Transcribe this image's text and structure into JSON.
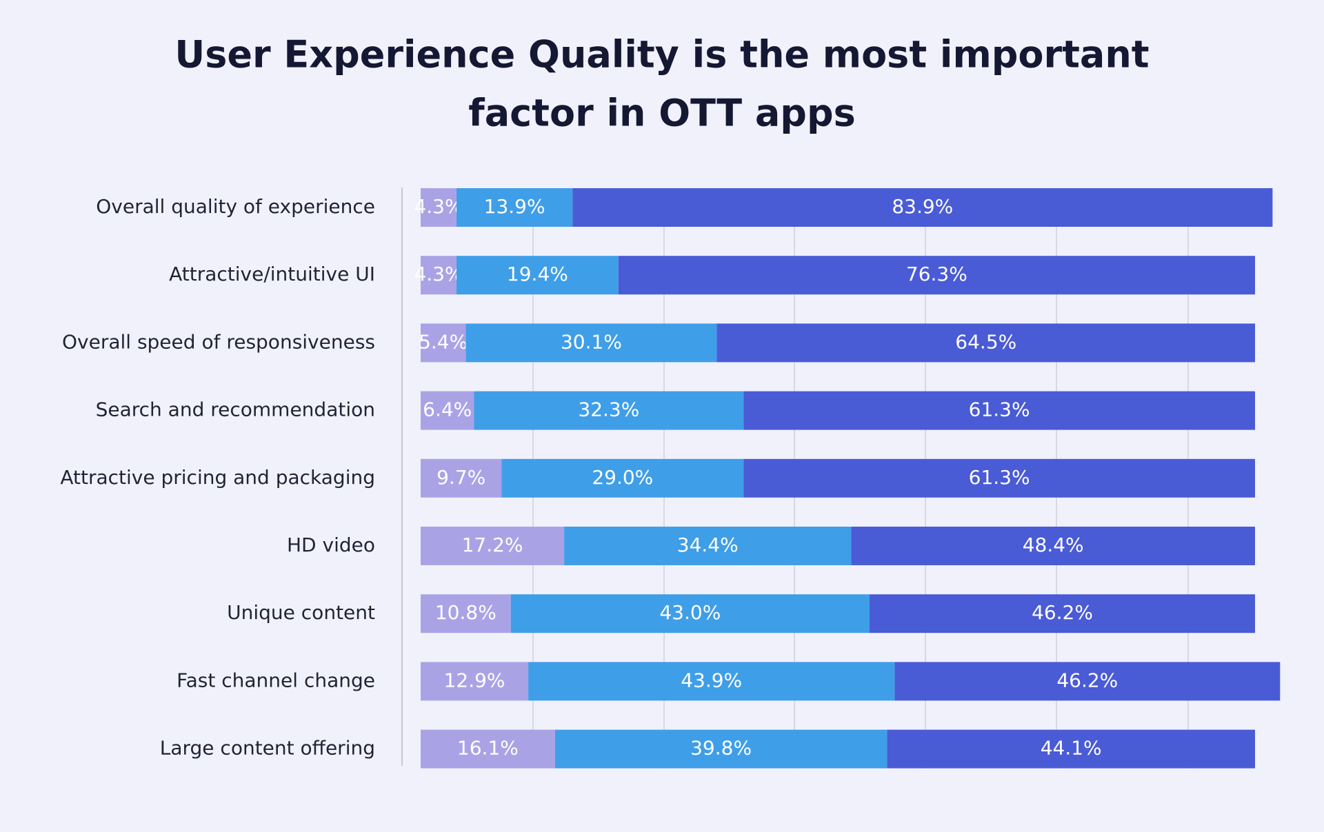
{
  "chart_data": {
    "type": "stacked-bar-horizontal",
    "title": [
      "User Experience Quality is the most important",
      "factor in OTT apps"
    ],
    "categories": [
      "Overall quality of experience",
      "Attractive/intuitive UI",
      "Overall speed of responsiveness",
      "Search and recommendation",
      "Attractive pricing and packaging",
      "HD video",
      "Unique content",
      "Fast channel change",
      "Large content offering"
    ],
    "xlim": [
      0,
      100
    ],
    "series": [
      {
        "color": "#a9a3e6",
        "values": [
          4.3,
          4.3,
          5.4,
          6.4,
          9.7,
          17.2,
          10.8,
          12.9,
          16.1
        ],
        "value_labels": [
          "4.3%",
          "4.3%",
          "5.4%",
          "6.4%",
          "9.7%",
          "17.2%",
          "10.8%",
          "12.9%",
          "16.1%"
        ]
      },
      {
        "color": "#3f9ee8",
        "values": [
          13.9,
          19.4,
          30.1,
          32.3,
          29.0,
          34.4,
          43.0,
          43.9,
          39.8
        ],
        "value_labels": [
          "13.9%",
          "19.4%",
          "30.1%",
          "32.3%",
          "29.0%",
          "34.4%",
          "43.0%",
          "43.9%",
          "39.8%"
        ]
      },
      {
        "color": "#4a5bd6",
        "values": [
          83.9,
          76.3,
          64.5,
          61.3,
          61.3,
          48.4,
          46.2,
          46.2,
          44.1
        ],
        "value_labels": [
          "83.9%",
          "76.3%",
          "64.5%",
          "61.3%",
          "61.3%",
          "48.4%",
          "46.2%",
          "46.2%",
          "44.1%"
        ]
      }
    ]
  }
}
